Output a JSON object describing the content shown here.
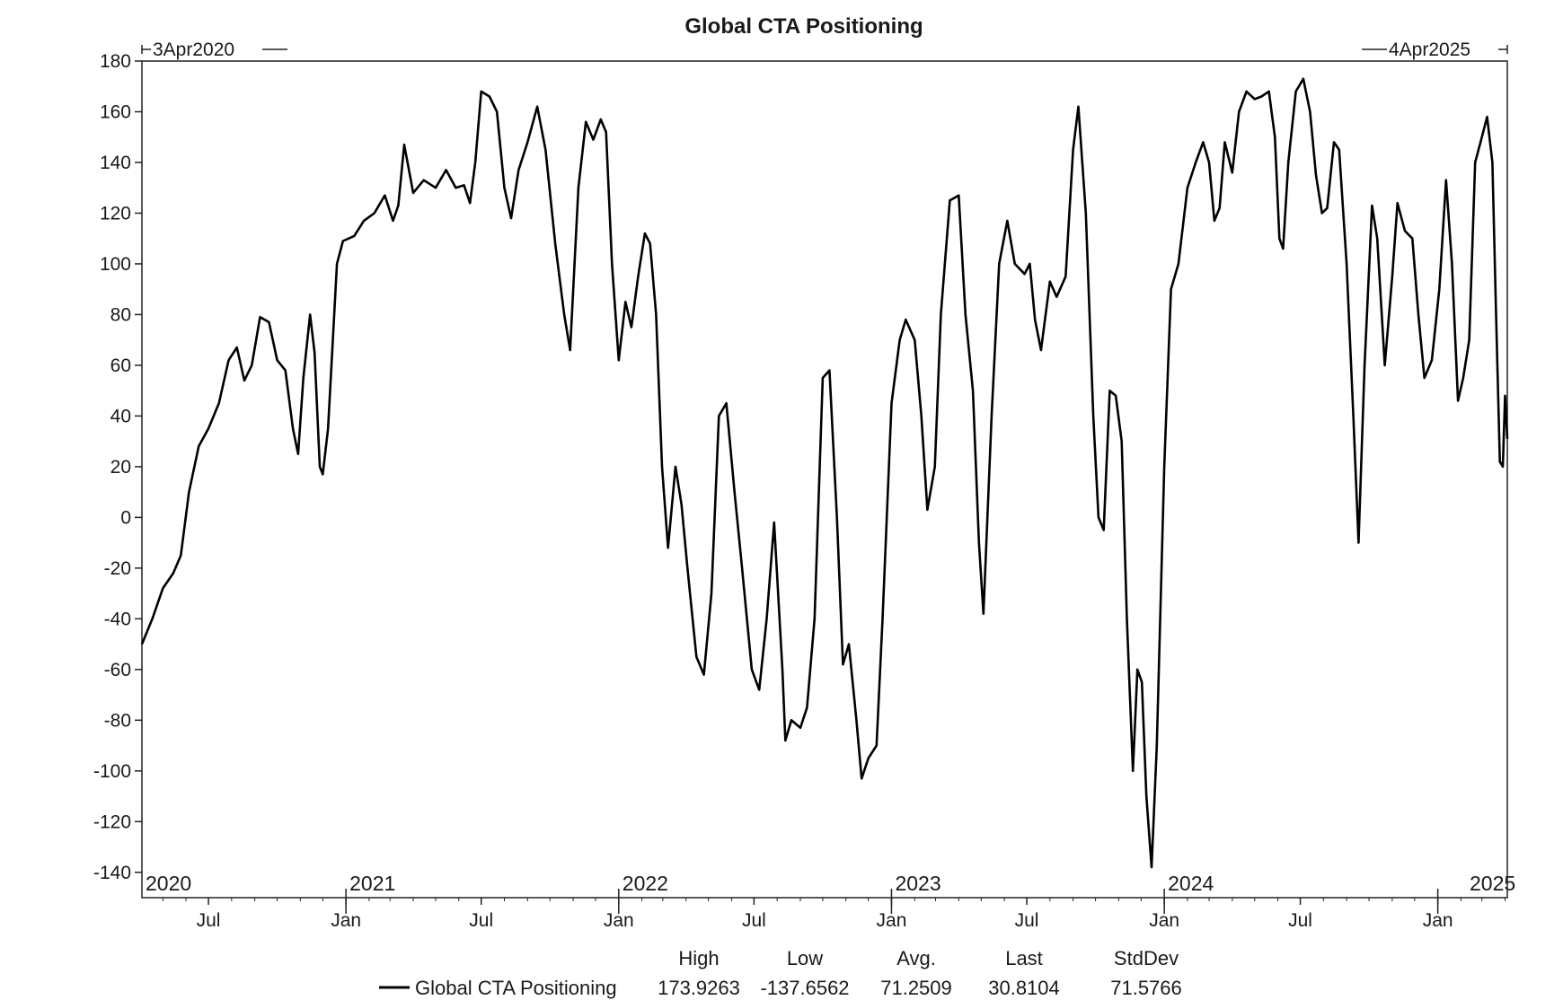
{
  "chart_data": {
    "type": "line",
    "title": "Global CTA Positioning",
    "start_label": "3Apr2020",
    "end_label": "4Apr2025",
    "x_start": "2020-04-03",
    "x_end": "2025-04-04",
    "ylim": [
      -150,
      180
    ],
    "yticks": [
      180,
      160,
      140,
      120,
      100,
      80,
      60,
      40,
      20,
      0,
      -20,
      -40,
      -60,
      -80,
      -100,
      -120,
      -140
    ],
    "year_labels": [
      "2020",
      "2021",
      "2022",
      "2023",
      "2024",
      "2025"
    ],
    "month_labels": [
      "Jul",
      "Jan",
      "Jul",
      "Jan",
      "Jul",
      "Jan",
      "Jul",
      "Jan",
      "Jul",
      "Jan"
    ],
    "grid": false,
    "legend": "bottom",
    "series": [
      {
        "name": "Global CTA Positioning",
        "color": "#000000",
        "points": [
          [
            "2020-04-03",
            -50
          ],
          [
            "2020-04-17",
            -40
          ],
          [
            "2020-05-01",
            -28
          ],
          [
            "2020-05-15",
            -22
          ],
          [
            "2020-05-25",
            -15
          ],
          [
            "2020-06-05",
            10
          ],
          [
            "2020-06-18",
            28
          ],
          [
            "2020-07-01",
            35
          ],
          [
            "2020-07-15",
            45
          ],
          [
            "2020-07-28",
            62
          ],
          [
            "2020-08-08",
            67
          ],
          [
            "2020-08-18",
            54
          ],
          [
            "2020-08-28",
            60
          ],
          [
            "2020-09-08",
            79
          ],
          [
            "2020-09-20",
            77
          ],
          [
            "2020-10-01",
            62
          ],
          [
            "2020-10-12",
            58
          ],
          [
            "2020-10-22",
            35
          ],
          [
            "2020-10-29",
            25
          ],
          [
            "2020-11-05",
            55
          ],
          [
            "2020-11-14",
            80
          ],
          [
            "2020-11-20",
            65
          ],
          [
            "2020-11-27",
            20
          ],
          [
            "2020-12-01",
            17
          ],
          [
            "2020-12-08",
            35
          ],
          [
            "2020-12-20",
            100
          ],
          [
            "2020-12-28",
            109
          ],
          [
            "2021-01-12",
            111
          ],
          [
            "2021-01-25",
            117
          ],
          [
            "2021-02-08",
            120
          ],
          [
            "2021-02-22",
            127
          ],
          [
            "2021-03-05",
            117
          ],
          [
            "2021-03-12",
            123
          ],
          [
            "2021-03-20",
            147
          ],
          [
            "2021-04-01",
            128
          ],
          [
            "2021-04-15",
            133
          ],
          [
            "2021-05-01",
            130
          ],
          [
            "2021-05-15",
            137
          ],
          [
            "2021-05-28",
            130
          ],
          [
            "2021-06-08",
            131
          ],
          [
            "2021-06-16",
            124
          ],
          [
            "2021-06-23",
            140
          ],
          [
            "2021-07-01",
            168
          ],
          [
            "2021-07-12",
            166
          ],
          [
            "2021-07-22",
            160
          ],
          [
            "2021-08-01",
            130
          ],
          [
            "2021-08-10",
            118
          ],
          [
            "2021-08-20",
            137
          ],
          [
            "2021-09-01",
            148
          ],
          [
            "2021-09-14",
            162
          ],
          [
            "2021-09-25",
            145
          ],
          [
            "2021-10-08",
            108
          ],
          [
            "2021-10-20",
            80
          ],
          [
            "2021-10-28",
            66
          ],
          [
            "2021-11-08",
            130
          ],
          [
            "2021-11-18",
            156
          ],
          [
            "2021-11-28",
            149
          ],
          [
            "2021-12-08",
            157
          ],
          [
            "2021-12-15",
            152
          ],
          [
            "2021-12-23",
            100
          ],
          [
            "2022-01-01",
            62
          ],
          [
            "2022-01-10",
            85
          ],
          [
            "2022-01-18",
            75
          ],
          [
            "2022-01-27",
            95
          ],
          [
            "2022-02-05",
            112
          ],
          [
            "2022-02-12",
            108
          ],
          [
            "2022-02-20",
            80
          ],
          [
            "2022-02-28",
            20
          ],
          [
            "2022-03-08",
            -12
          ],
          [
            "2022-03-18",
            20
          ],
          [
            "2022-03-26",
            5
          ],
          [
            "2022-04-03",
            -20
          ],
          [
            "2022-04-15",
            -55
          ],
          [
            "2022-04-25",
            -62
          ],
          [
            "2022-05-05",
            -30
          ],
          [
            "2022-05-15",
            40
          ],
          [
            "2022-05-25",
            45
          ],
          [
            "2022-06-05",
            10
          ],
          [
            "2022-06-15",
            -20
          ],
          [
            "2022-06-28",
            -60
          ],
          [
            "2022-07-08",
            -68
          ],
          [
            "2022-07-18",
            -40
          ],
          [
            "2022-07-28",
            -2
          ],
          [
            "2022-08-08",
            -60
          ],
          [
            "2022-08-12",
            -88
          ],
          [
            "2022-08-20",
            -80
          ],
          [
            "2022-09-01",
            -83
          ],
          [
            "2022-09-10",
            -75
          ],
          [
            "2022-09-20",
            -40
          ],
          [
            "2022-10-01",
            55
          ],
          [
            "2022-10-10",
            58
          ],
          [
            "2022-10-20",
            0
          ],
          [
            "2022-10-28",
            -58
          ],
          [
            "2022-11-05",
            -50
          ],
          [
            "2022-11-15",
            -80
          ],
          [
            "2022-11-22",
            -103
          ],
          [
            "2022-12-01",
            -95
          ],
          [
            "2022-12-12",
            -90
          ],
          [
            "2022-12-20",
            -40
          ],
          [
            "2023-01-01",
            45
          ],
          [
            "2023-01-12",
            70
          ],
          [
            "2023-01-20",
            78
          ],
          [
            "2023-02-01",
            70
          ],
          [
            "2023-02-10",
            40
          ],
          [
            "2023-02-18",
            3
          ],
          [
            "2023-02-28",
            20
          ],
          [
            "2023-03-08",
            80
          ],
          [
            "2023-03-20",
            125
          ],
          [
            "2023-04-01",
            127
          ],
          [
            "2023-04-10",
            80
          ],
          [
            "2023-04-20",
            50
          ],
          [
            "2023-04-28",
            -10
          ],
          [
            "2023-05-04",
            -38
          ],
          [
            "2023-05-15",
            40
          ],
          [
            "2023-05-25",
            100
          ],
          [
            "2023-06-05",
            117
          ],
          [
            "2023-06-15",
            100
          ],
          [
            "2023-06-28",
            96
          ],
          [
            "2023-07-05",
            100
          ],
          [
            "2023-07-12",
            78
          ],
          [
            "2023-07-20",
            66
          ],
          [
            "2023-08-01",
            93
          ],
          [
            "2023-08-10",
            87
          ],
          [
            "2023-08-22",
            95
          ],
          [
            "2023-09-01",
            145
          ],
          [
            "2023-09-08",
            162
          ],
          [
            "2023-09-18",
            120
          ],
          [
            "2023-09-28",
            40
          ],
          [
            "2023-10-05",
            0
          ],
          [
            "2023-10-12",
            -5
          ],
          [
            "2023-10-20",
            50
          ],
          [
            "2023-10-28",
            48
          ],
          [
            "2023-11-05",
            30
          ],
          [
            "2023-11-12",
            -40
          ],
          [
            "2023-11-20",
            -100
          ],
          [
            "2023-11-26",
            -60
          ],
          [
            "2023-12-02",
            -65
          ],
          [
            "2023-12-08",
            -110
          ],
          [
            "2023-12-15",
            -138
          ],
          [
            "2023-12-22",
            -90
          ],
          [
            "2024-01-01",
            20
          ],
          [
            "2024-01-10",
            90
          ],
          [
            "2024-01-20",
            100
          ],
          [
            "2024-02-01",
            130
          ],
          [
            "2024-02-12",
            140
          ],
          [
            "2024-02-22",
            148
          ],
          [
            "2024-03-01",
            140
          ],
          [
            "2024-03-08",
            117
          ],
          [
            "2024-03-15",
            122
          ],
          [
            "2024-03-22",
            148
          ],
          [
            "2024-04-01",
            136
          ],
          [
            "2024-04-10",
            160
          ],
          [
            "2024-04-20",
            168
          ],
          [
            "2024-05-01",
            165
          ],
          [
            "2024-05-10",
            166
          ],
          [
            "2024-05-20",
            168
          ],
          [
            "2024-05-28",
            150
          ],
          [
            "2024-06-03",
            110
          ],
          [
            "2024-06-08",
            106
          ],
          [
            "2024-06-15",
            140
          ],
          [
            "2024-06-25",
            168
          ],
          [
            "2024-07-05",
            173
          ],
          [
            "2024-07-14",
            160
          ],
          [
            "2024-07-22",
            135
          ],
          [
            "2024-07-30",
            120
          ],
          [
            "2024-08-06",
            122
          ],
          [
            "2024-08-15",
            148
          ],
          [
            "2024-08-22",
            145
          ],
          [
            "2024-09-01",
            100
          ],
          [
            "2024-09-10",
            40
          ],
          [
            "2024-09-17",
            -10
          ],
          [
            "2024-09-25",
            60
          ],
          [
            "2024-10-05",
            123
          ],
          [
            "2024-10-12",
            110
          ],
          [
            "2024-10-22",
            60
          ],
          [
            "2024-11-01",
            95
          ],
          [
            "2024-11-08",
            124
          ],
          [
            "2024-11-18",
            113
          ],
          [
            "2024-11-28",
            110
          ],
          [
            "2024-12-06",
            80
          ],
          [
            "2024-12-14",
            55
          ],
          [
            "2024-12-24",
            62
          ],
          [
            "2025-01-03",
            90
          ],
          [
            "2025-01-12",
            133
          ],
          [
            "2025-01-20",
            100
          ],
          [
            "2025-01-28",
            46
          ],
          [
            "2025-02-04",
            55
          ],
          [
            "2025-02-12",
            70
          ],
          [
            "2025-02-20",
            140
          ],
          [
            "2025-03-01",
            150
          ],
          [
            "2025-03-08",
            158
          ],
          [
            "2025-03-15",
            140
          ],
          [
            "2025-03-20",
            80
          ],
          [
            "2025-03-25",
            22
          ],
          [
            "2025-03-29",
            20
          ],
          [
            "2025-04-01",
            48
          ],
          [
            "2025-04-04",
            31
          ]
        ]
      }
    ],
    "stats": {
      "headers": [
        "High",
        "Low",
        "Avg.",
        "Last",
        "StdDev"
      ],
      "values": [
        "173.9263",
        "-137.6562",
        "71.2509",
        "30.8104",
        "71.5766"
      ]
    }
  }
}
